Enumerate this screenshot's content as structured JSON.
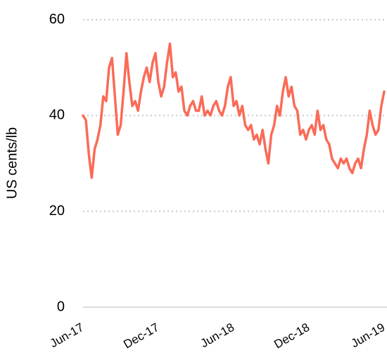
{
  "chart_data": {
    "type": "line",
    "y_label": "US cents/lb",
    "color": "#fa6b57",
    "categories": [
      "Jun-17",
      null,
      null,
      null,
      null,
      null,
      null,
      null,
      null,
      null,
      null,
      null,
      null,
      null,
      null,
      null,
      null,
      null,
      null,
      null,
      null,
      null,
      null,
      null,
      null,
      null,
      "Dec-17",
      null,
      null,
      null,
      null,
      null,
      null,
      null,
      null,
      null,
      null,
      null,
      null,
      null,
      null,
      null,
      null,
      null,
      null,
      null,
      null,
      null,
      null,
      null,
      null,
      null,
      "Jun-18",
      null,
      null,
      null,
      null,
      null,
      null,
      null,
      null,
      null,
      null,
      null,
      null,
      null,
      null,
      null,
      null,
      null,
      null,
      null,
      null,
      null,
      null,
      null,
      null,
      null,
      "Dec-18",
      null,
      null,
      null,
      null,
      null,
      null,
      null,
      null,
      null,
      null,
      null,
      null,
      null,
      null,
      null,
      null,
      null,
      null,
      null,
      null,
      null,
      null,
      null,
      null,
      null,
      "Jun-19"
    ],
    "values": [
      40,
      39,
      32,
      27,
      33,
      35,
      38,
      44,
      43,
      50,
      52,
      44,
      36,
      38,
      45,
      53,
      47,
      42,
      43,
      41,
      45,
      48,
      50,
      47,
      51,
      53,
      47,
      44,
      46,
      51,
      55,
      48,
      49,
      45,
      46,
      41,
      40,
      42,
      43,
      41,
      41,
      44,
      40,
      41,
      40,
      42,
      43,
      41,
      40,
      42,
      46,
      48,
      42,
      43,
      40,
      42,
      38,
      37,
      38,
      35,
      36,
      34,
      37,
      33,
      30,
      36,
      38,
      42,
      40,
      45,
      48,
      44,
      46,
      42,
      41,
      36,
      37,
      35,
      37,
      38,
      36,
      41,
      37,
      38,
      35,
      34,
      31,
      30,
      29,
      31,
      30,
      31,
      29,
      28,
      30,
      31,
      29,
      33,
      36,
      41,
      38,
      36,
      37,
      42,
      45
    ],
    "ylim": [
      0,
      60
    ],
    "yticks": [
      0,
      20,
      40,
      60
    ],
    "grid": true
  }
}
